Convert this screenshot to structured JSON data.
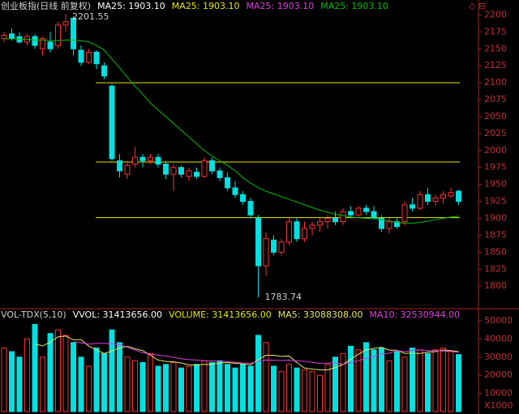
{
  "chart_data": [
    {
      "type": "candlestick",
      "title": "创业板指(日线 前复权)",
      "header": [
        {
          "text": "MA25: 1903.10",
          "color": "#ffffff"
        },
        {
          "text": "MA25: 1903.10",
          "color": "#e8e800"
        },
        {
          "text": "MA25: 1903.10",
          "color": "#e040e0"
        }
      ],
      "ohlc": [
        [
          2165,
          2175,
          2160,
          2170
        ],
        [
          2172,
          2180,
          2162,
          2165
        ],
        [
          2168,
          2174,
          2158,
          2160
        ],
        [
          2160,
          2172,
          2155,
          2168
        ],
        [
          2168,
          2172,
          2150,
          2155
        ],
        [
          2150,
          2168,
          2140,
          2165
        ],
        [
          2160,
          2175,
          2145,
          2150
        ],
        [
          2155,
          2190,
          2150,
          2185
        ],
        [
          2185,
          2201.55,
          2175,
          2190
        ],
        [
          2195,
          2198,
          2140,
          2150
        ],
        [
          2148,
          2155,
          2125,
          2130
        ],
        [
          2130,
          2150,
          2128,
          2145
        ],
        [
          2145,
          2148,
          2120,
          2128
        ],
        [
          2125,
          2130,
          2105,
          2110
        ],
        [
          2095,
          2098,
          1985,
          1988
        ],
        [
          1985,
          1995,
          1960,
          1970
        ],
        [
          1965,
          1985,
          1958,
          1978
        ],
        [
          1980,
          2005,
          1975,
          1990
        ],
        [
          1990,
          1995,
          1975,
          1985
        ],
        [
          1985,
          1995,
          1980,
          1990
        ],
        [
          1990,
          1995,
          1975,
          1980
        ],
        [
          1980,
          1985,
          1958,
          1965
        ],
        [
          1965,
          1980,
          1940,
          1975
        ],
        [
          1975,
          1978,
          1960,
          1965
        ],
        [
          1962,
          1975,
          1955,
          1970
        ],
        [
          1968,
          1975,
          1958,
          1962
        ],
        [
          1962,
          1990,
          1960,
          1985
        ],
        [
          1985,
          1990,
          1965,
          1970
        ],
        [
          1970,
          1975,
          1955,
          1960
        ],
        [
          1960,
          1968,
          1940,
          1945
        ],
        [
          1945,
          1955,
          1930,
          1935
        ],
        [
          1935,
          1940,
          1920,
          1925
        ],
        [
          1925,
          1930,
          1900,
          1905
        ],
        [
          1900,
          1905,
          1783.74,
          1830
        ],
        [
          1830,
          1880,
          1815,
          1870
        ],
        [
          1868,
          1875,
          1845,
          1850
        ],
        [
          1850,
          1870,
          1845,
          1865
        ],
        [
          1865,
          1900,
          1860,
          1895
        ],
        [
          1895,
          1900,
          1865,
          1870
        ],
        [
          1870,
          1895,
          1865,
          1885
        ],
        [
          1885,
          1895,
          1875,
          1890
        ],
        [
          1890,
          1900,
          1880,
          1895
        ],
        [
          1895,
          1905,
          1885,
          1900
        ],
        [
          1900,
          1910,
          1890,
          1895
        ],
        [
          1895,
          1915,
          1890,
          1910
        ],
        [
          1910,
          1918,
          1900,
          1905
        ],
        [
          1905,
          1918,
          1900,
          1915
        ],
        [
          1915,
          1920,
          1905,
          1910
        ],
        [
          1910,
          1918,
          1898,
          1900
        ],
        [
          1900,
          1905,
          1880,
          1885
        ],
        [
          1885,
          1900,
          1878,
          1895
        ],
        [
          1895,
          1900,
          1885,
          1888
        ],
        [
          1895,
          1925,
          1890,
          1920
        ],
        [
          1920,
          1930,
          1910,
          1915
        ],
        [
          1915,
          1940,
          1912,
          1935
        ],
        [
          1935,
          1945,
          1920,
          1925
        ],
        [
          1925,
          1935,
          1918,
          1930
        ],
        [
          1930,
          1940,
          1922,
          1935
        ],
        [
          1933,
          1945,
          1930,
          1938
        ],
        [
          1940,
          1942,
          1920,
          1925
        ]
      ],
      "up_color": "#ff3030",
      "down_color": "#00e0e0",
      "series": [
        {
          "name": "MA25: 1903.10",
          "color": "#00c000",
          "values": [
            2165,
            2165,
            2164,
            2164,
            2163,
            2163,
            2162,
            2162,
            2163,
            2163,
            2162,
            2160,
            2155,
            2148,
            2135,
            2122,
            2108,
            2095,
            2083,
            2070,
            2060,
            2050,
            2040,
            2030,
            2020,
            2010,
            2000,
            1992,
            1985,
            1978,
            1970,
            1960,
            1952,
            1945,
            1940,
            1936,
            1932,
            1928,
            1924,
            1920,
            1916,
            1912,
            1909,
            1906,
            1904,
            1902,
            1901,
            1900,
            1900,
            1898,
            1896,
            1894,
            1893,
            1893,
            1894,
            1896,
            1898,
            1900,
            1902,
            1903.1
          ]
        }
      ],
      "hlines": [
        2100,
        1983,
        1901
      ],
      "hline_color": "#e8e800",
      "ylim": [
        1768,
        2222
      ],
      "yticks": [
        1800,
        1825,
        1850,
        1875,
        1900,
        1925,
        1950,
        1975,
        2000,
        2025,
        2050,
        2075,
        2100,
        2125,
        2150,
        2175,
        2200
      ]
    },
    {
      "type": "bar",
      "title": "VOL-TDX(5,10)",
      "header": [
        {
          "text": "VVOL: 31413656.00",
          "color": "#ffffff"
        },
        {
          "text": "VOLUME: 31413656.00",
          "color": "#e8e800"
        }
      ],
      "values": [
        35000,
        33000,
        30000,
        40000,
        48000,
        30000,
        43000,
        45000,
        42000,
        38000,
        30000,
        25000,
        35000,
        32000,
        45000,
        38000,
        30000,
        28000,
        27000,
        32000,
        25000,
        26000,
        27000,
        24000,
        25000,
        26000,
        28000,
        27000,
        28000,
        26000,
        24000,
        26000,
        25000,
        42000,
        38000,
        25000,
        22000,
        26000,
        24000,
        23000,
        22000,
        20000,
        26000,
        30000,
        32000,
        36000,
        34000,
        38000,
        34000,
        35000,
        28000,
        33000,
        30000,
        35000,
        34000,
        32000,
        34000,
        35000,
        33000,
        31413.656
      ],
      "series": [
        {
          "name": "MA5: 33088308.00",
          "color": "#e8e860",
          "values": [
            null,
            null,
            null,
            null,
            37200,
            36200,
            38200,
            41200,
            41600,
            39600,
            39600,
            36000,
            34000,
            32000,
            33400,
            35000,
            36000,
            34600,
            33600,
            31000,
            28400,
            27600,
            27400,
            26800,
            25800,
            25600,
            26000,
            26000,
            26800,
            27000,
            26600,
            26200,
            25800,
            28600,
            31000,
            31000,
            30400,
            30600,
            27000,
            24000,
            23400,
            23000,
            23000,
            24200,
            26000,
            28800,
            31600,
            34000,
            34800,
            35400,
            33800,
            33800,
            32000,
            32200,
            32000,
            32800,
            33000,
            34000,
            33600,
            33088.308
          ]
        },
        {
          "name": "MA10: 32530944.00",
          "color": "#e040e0",
          "values": [
            null,
            null,
            null,
            null,
            null,
            null,
            null,
            null,
            null,
            38400,
            37900,
            37100,
            37600,
            37600,
            37300,
            36900,
            35600,
            33900,
            32400,
            31600,
            31100,
            30700,
            29900,
            29100,
            28600,
            28400,
            28000,
            27900,
            27800,
            27500,
            27100,
            26800,
            26600,
            27700,
            28400,
            28300,
            28200,
            28300,
            27900,
            27700,
            27100,
            26600,
            26700,
            26900,
            26100,
            26900,
            28100,
            29300,
            30300,
            31600,
            32200,
            33600,
            33000,
            33800,
            34000,
            33600,
            33600,
            33300,
            33200,
            32530.944
          ]
        }
      ],
      "ylim": [
        0,
        54900
      ],
      "yticks": [
        10000,
        20000,
        30000,
        40000,
        50000
      ],
      "unit_label": "X1000"
    }
  ]
}
